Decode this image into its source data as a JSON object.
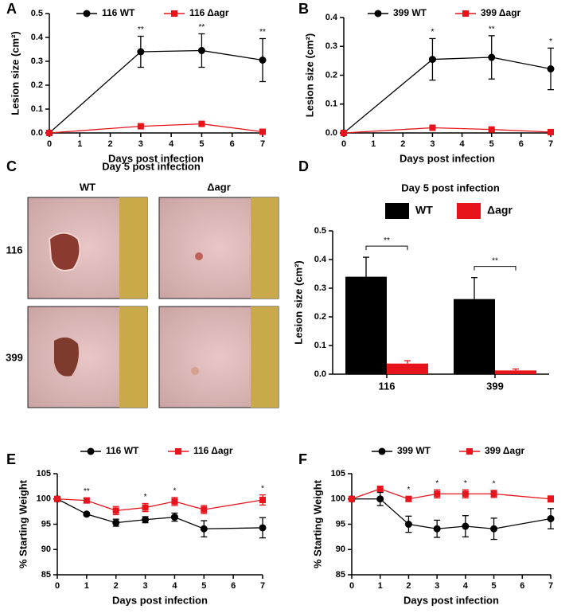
{
  "chart_data": [
    {
      "type": "line",
      "panel_label": "A",
      "ylabel": "Lesion size (cm²)",
      "xlabel": "Days post infection",
      "x": [
        0,
        3,
        5,
        7
      ],
      "xlim": [
        0,
        7
      ],
      "xticks": [
        0,
        1,
        2,
        3,
        4,
        5,
        6,
        7
      ],
      "ylim": [
        0,
        0.5
      ],
      "yticks": [
        {
          "value": 0,
          "label": "0.0"
        },
        0.1,
        0.2,
        0.3,
        0.4,
        0.5
      ],
      "series": [
        {
          "name": "116 WT",
          "color": "#000000",
          "marker": "circle",
          "values": [
            0,
            0.34,
            0.345,
            0.305
          ],
          "errors": [
            0,
            0.065,
            0.07,
            0.09
          ]
        },
        {
          "name": "116 Δagr",
          "color": "#e8141c",
          "marker": "square",
          "values": [
            0,
            0.028,
            0.038,
            0.005
          ],
          "errors": [
            0,
            0.005,
            0.005,
            0.002
          ]
        }
      ],
      "annotations": [
        null,
        "**",
        "**",
        "**"
      ]
    },
    {
      "type": "line",
      "panel_label": "B",
      "ylabel": "Lesion size (cm²)",
      "xlabel": "Days post infection",
      "x": [
        0,
        3,
        5,
        7
      ],
      "xlim": [
        0,
        7
      ],
      "xticks": [
        0,
        1,
        2,
        3,
        4,
        5,
        6,
        7
      ],
      "ylim": [
        0,
        0.4
      ],
      "yticks": [
        {
          "value": 0,
          "label": "0.0"
        },
        0.1,
        0.2,
        0.3,
        0.4
      ],
      "series": [
        {
          "name": "399 WT",
          "color": "#000000",
          "marker": "circle",
          "values": [
            0,
            0.255,
            0.262,
            0.222
          ],
          "errors": [
            0,
            0.072,
            0.075,
            0.072
          ]
        },
        {
          "name": "399 Δagr",
          "color": "#e8141c",
          "marker": "square",
          "values": [
            0,
            0.018,
            0.012,
            0.003
          ],
          "errors": [
            0,
            0.004,
            0.004,
            0.002
          ]
        }
      ],
      "annotations": [
        null,
        "*",
        "**",
        "*"
      ]
    },
    {
      "type": "bar",
      "panel_label": "D",
      "title": "Day 5 post infection",
      "ylabel": "Lesion size (cm²)",
      "categories": [
        "116",
        "399"
      ],
      "ylim": [
        0,
        0.5
      ],
      "yticks": [
        {
          "value": 0,
          "label": "0.0"
        },
        0.1,
        0.2,
        0.3,
        0.4,
        0.5
      ],
      "series": [
        {
          "name": "WT",
          "color": "#000000",
          "values": [
            0.34,
            0.262
          ],
          "errors": [
            0.068,
            0.075
          ]
        },
        {
          "name": "Δagr",
          "color": "#e8141c",
          "values": [
            0.037,
            0.013
          ],
          "errors": [
            0.01,
            0.005
          ]
        }
      ],
      "significance": [
        "**",
        "**"
      ]
    },
    {
      "type": "line",
      "panel_label": "E",
      "ylabel": "% Starting Weight",
      "xlabel": "Days post infection",
      "x": [
        0,
        1,
        2,
        3,
        4,
        5,
        7
      ],
      "xlim": [
        0,
        7
      ],
      "xticks": [
        0,
        1,
        2,
        3,
        4,
        5,
        6,
        7
      ],
      "ylim": [
        85,
        105
      ],
      "yticks": [
        85,
        90,
        95,
        100,
        105
      ],
      "series": [
        {
          "name": "116 WT",
          "color": "#000000",
          "marker": "circle",
          "values": [
            100,
            97,
            95.3,
            95.9,
            96.4,
            94.1,
            94.3
          ],
          "errors": [
            0,
            0.3,
            0.7,
            0.6,
            0.8,
            1.6,
            2
          ]
        },
        {
          "name": "116 Δagr",
          "color": "#e8141c",
          "marker": "square",
          "values": [
            100,
            99.7,
            97.7,
            98.3,
            99.5,
            97.9,
            99.8
          ],
          "errors": [
            0,
            0.5,
            0.8,
            0.8,
            0.8,
            0.8,
            1
          ]
        }
      ],
      "annotations": [
        null,
        "**",
        null,
        "*",
        "*",
        null,
        "*"
      ]
    },
    {
      "type": "line",
      "panel_label": "F",
      "ylabel": "% Starting Weight",
      "xlabel": "Days post infection",
      "x": [
        0,
        1,
        2,
        3,
        4,
        5,
        7
      ],
      "xlim": [
        0,
        7
      ],
      "xticks": [
        0,
        1,
        2,
        3,
        4,
        5,
        6,
        7
      ],
      "ylim": [
        85,
        105
      ],
      "yticks": [
        85,
        90,
        95,
        100,
        105
      ],
      "series": [
        {
          "name": "399 WT",
          "color": "#000000",
          "marker": "circle",
          "values": [
            100,
            100,
            95,
            94.1,
            94.6,
            94.1,
            96.1
          ],
          "errors": [
            0,
            1.3,
            1.6,
            1.7,
            2.1,
            2.1,
            2
          ]
        },
        {
          "name": "399 Δagr",
          "color": "#e8141c",
          "marker": "square",
          "values": [
            100,
            102,
            100,
            101,
            101,
            101,
            100
          ],
          "errors": [
            0,
            0.5,
            0.5,
            0.8,
            0.8,
            0.7,
            0.6
          ]
        }
      ],
      "annotations": [
        null,
        null,
        "*",
        "*",
        "*",
        "*",
        null
      ]
    }
  ],
  "photo_panel": {
    "panel_label": "C",
    "title": "Day 5 post infection",
    "columns": [
      "WT",
      "Δagr"
    ],
    "rows": [
      "116",
      "399"
    ]
  }
}
